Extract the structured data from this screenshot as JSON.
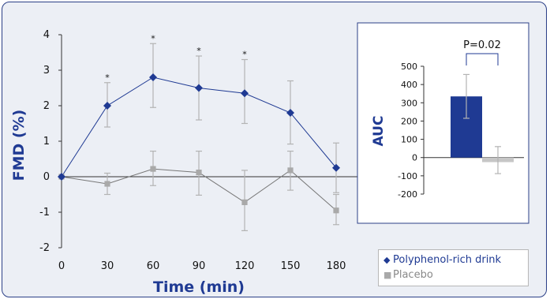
{
  "chart_data": [
    {
      "type": "line",
      "xlabel": "Time (min)",
      "ylabel": "FMD (%)",
      "x": [
        0,
        30,
        60,
        90,
        120,
        150,
        180
      ],
      "xlim": [
        0,
        180
      ],
      "ylim": [
        -2,
        4
      ],
      "xticks": [
        "0",
        "30",
        "60",
        "90",
        "120",
        "150",
        "180"
      ],
      "yticks": [
        "-2",
        "-1",
        "0",
        "1",
        "2",
        "3",
        "4"
      ],
      "grid": false,
      "legend": "bottom-right",
      "series": [
        {
          "name": "Polyphenol-rich drink",
          "color": "#1f3a93",
          "marker": "diamond",
          "values": [
            0,
            2.0,
            2.8,
            2.5,
            2.35,
            1.8,
            0.25
          ],
          "error_high": [
            0,
            2.65,
            3.75,
            3.4,
            3.3,
            2.7,
            0.95
          ],
          "error_low": [
            0,
            1.4,
            1.95,
            1.6,
            1.5,
            0.92,
            -0.45
          ],
          "significance": [
            "",
            "*",
            "*",
            "*",
            "*",
            "",
            ""
          ]
        },
        {
          "name": "Placebo",
          "color": "#a9a9a9",
          "marker": "square",
          "values": [
            0,
            -0.2,
            0.22,
            0.12,
            -0.72,
            0.18,
            -0.95
          ],
          "error_high": [
            0,
            0.1,
            0.72,
            0.72,
            0.18,
            0.72,
            -0.5
          ],
          "error_low": [
            0,
            -0.5,
            -0.25,
            -0.52,
            -1.52,
            -0.38,
            -1.35
          ]
        }
      ]
    },
    {
      "type": "bar",
      "ylabel": "AUC",
      "ylim": [
        -200,
        500
      ],
      "yticks": [
        "-200",
        "-100",
        "0",
        "100",
        "200",
        "300",
        "400",
        "500"
      ],
      "annotation": "P=0.02",
      "series": [
        {
          "name": "Polyphenol-rich drink",
          "color": "#1f3a93",
          "value": 335,
          "error_high": 455,
          "error_low": 215
        },
        {
          "name": "Placebo",
          "color": "#c6c6c6",
          "value": -25,
          "error_high": 60,
          "error_low": -88
        }
      ]
    }
  ],
  "legend": {
    "items": [
      {
        "label": "Polyphenol-rich drink",
        "marker": "◆",
        "color": "#1f3a93"
      },
      {
        "label": "Placebo",
        "marker": "■",
        "color": "#a9a9a9"
      }
    ]
  }
}
